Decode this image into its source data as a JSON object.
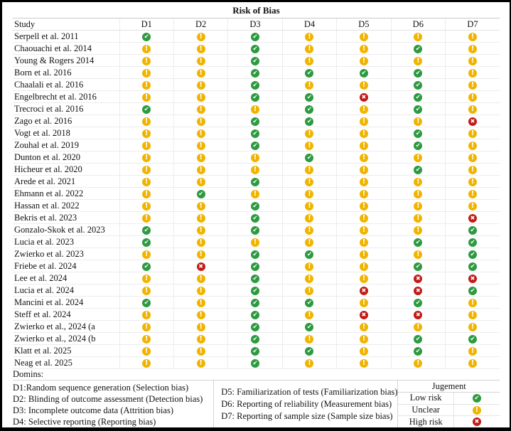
{
  "title": "Risk of Bias",
  "table": {
    "study_header": "Study",
    "domain_headers": [
      "D1",
      "D2",
      "D3",
      "D4",
      "D5",
      "D6",
      "D7"
    ],
    "studies": [
      {
        "name": "Serpell et al. 2011",
        "ratings": [
          "L",
          "U",
          "L",
          "U",
          "U",
          "U",
          "U"
        ]
      },
      {
        "name": "Chaouachi et al. 2014",
        "ratings": [
          "U",
          "U",
          "L",
          "U",
          "U",
          "L",
          "U"
        ]
      },
      {
        "name": "Young & Rogers 2014",
        "ratings": [
          "U",
          "U",
          "L",
          "U",
          "U",
          "U",
          "U"
        ]
      },
      {
        "name": "Born et al. 2016",
        "ratings": [
          "U",
          "U",
          "L",
          "L",
          "L",
          "L",
          "U"
        ]
      },
      {
        "name": "Chaalali et al. 2016",
        "ratings": [
          "U",
          "U",
          "L",
          "U",
          "U",
          "L",
          "U"
        ]
      },
      {
        "name": "Engelbrecht et al. 2016",
        "ratings": [
          "U",
          "U",
          "L",
          "L",
          "H",
          "L",
          "U"
        ]
      },
      {
        "name": "Trecroci et al. 2016",
        "ratings": [
          "L",
          "U",
          "U",
          "L",
          "U",
          "L",
          "U"
        ]
      },
      {
        "name": "Zago et al. 2016",
        "ratings": [
          "U",
          "U",
          "L",
          "L",
          "U",
          "U",
          "H"
        ]
      },
      {
        "name": "Vogt et al. 2018",
        "ratings": [
          "U",
          "U",
          "L",
          "U",
          "U",
          "L",
          "U"
        ]
      },
      {
        "name": "Zouhal et al. 2019",
        "ratings": [
          "U",
          "U",
          "L",
          "U",
          "U",
          "L",
          "U"
        ]
      },
      {
        "name": "Dunton et al. 2020",
        "ratings": [
          "U",
          "U",
          "U",
          "L",
          "U",
          "U",
          "U"
        ]
      },
      {
        "name": "Hicheur et al. 2020",
        "ratings": [
          "U",
          "U",
          "U",
          "U",
          "U",
          "L",
          "U"
        ]
      },
      {
        "name": "Arede et al. 2021",
        "ratings": [
          "U",
          "U",
          "L",
          "U",
          "U",
          "U",
          "U"
        ]
      },
      {
        "name": "Ehmann et al. 2022",
        "ratings": [
          "U",
          "L",
          "U",
          "U",
          "U",
          "U",
          "U"
        ]
      },
      {
        "name": "Hassan et al. 2022",
        "ratings": [
          "U",
          "U",
          "L",
          "U",
          "U",
          "U",
          "U"
        ]
      },
      {
        "name": "Bekris et al. 2023",
        "ratings": [
          "U",
          "U",
          "L",
          "U",
          "U",
          "U",
          "H"
        ]
      },
      {
        "name": "Gonzalo-Skok et al. 2023",
        "ratings": [
          "L",
          "U",
          "L",
          "U",
          "U",
          "U",
          "L"
        ]
      },
      {
        "name": "Lucia et al. 2023",
        "ratings": [
          "L",
          "U",
          "U",
          "U",
          "U",
          "L",
          "L"
        ]
      },
      {
        "name": "Zwierko et al. 2023",
        "ratings": [
          "U",
          "U",
          "L",
          "L",
          "U",
          "U",
          "L"
        ]
      },
      {
        "name": "Friebe et al. 2024",
        "ratings": [
          "L",
          "H",
          "L",
          "U",
          "U",
          "L",
          "L"
        ]
      },
      {
        "name": "Lee et al. 2024",
        "ratings": [
          "U",
          "U",
          "L",
          "U",
          "U",
          "H",
          "H"
        ]
      },
      {
        "name": "Lucia et al. 2024",
        "ratings": [
          "U",
          "U",
          "L",
          "U",
          "H",
          "H",
          "L"
        ]
      },
      {
        "name": "Mancini et al. 2024",
        "ratings": [
          "L",
          "U",
          "L",
          "L",
          "U",
          "L",
          "U"
        ]
      },
      {
        "name": "Steff et al. 2024",
        "ratings": [
          "U",
          "U",
          "L",
          "U",
          "H",
          "H",
          "U"
        ]
      },
      {
        "name": "Zwierko et al., 2024 (a",
        "ratings": [
          "U",
          "U",
          "L",
          "L",
          "U",
          "U",
          "U"
        ]
      },
      {
        "name": "Zwierko et al., 2024 (b",
        "ratings": [
          "U",
          "U",
          "L",
          "U",
          "U",
          "L",
          "L"
        ]
      },
      {
        "name": "Klatt et al. 2025",
        "ratings": [
          "U",
          "U",
          "L",
          "L",
          "U",
          "L",
          "U"
        ]
      },
      {
        "name": "Neag et al. 2025",
        "ratings": [
          "U",
          "U",
          "L",
          "U",
          "U",
          "U",
          "U"
        ]
      }
    ]
  },
  "footer": {
    "domains_label": "Domins:",
    "left_definitions": [
      "D1:Random sequence generation (Selection bias)",
      "D2: Blinding of outcome assessment (Detection bias)",
      "D3: Incomplete outcome data (Attrition bias)",
      "D4: Selective reporting (Reporting bias)"
    ],
    "right_definitions": [
      "D5: Familiarization of tests (Familiarization bias)",
      "D6: Reporting of reliability (Measurement bias)",
      "D7: Reporting of sample size (Sample size bias)"
    ],
    "legend": {
      "header": "Jugement",
      "entries": [
        {
          "label": "Low risk",
          "rating": "L"
        },
        {
          "label": "Unclear",
          "rating": "U"
        },
        {
          "label": "High risk",
          "rating": "H"
        }
      ]
    }
  },
  "icons": {
    "L": {
      "name": "low-risk-check-icon",
      "glyph": "✔",
      "color": "#2d9a41"
    },
    "U": {
      "name": "unclear-exclamation-icon",
      "glyph": "!",
      "color": "#f0b400"
    },
    "H": {
      "name": "high-risk-cross-icon",
      "glyph": "✖",
      "color": "#c11b17"
    }
  }
}
